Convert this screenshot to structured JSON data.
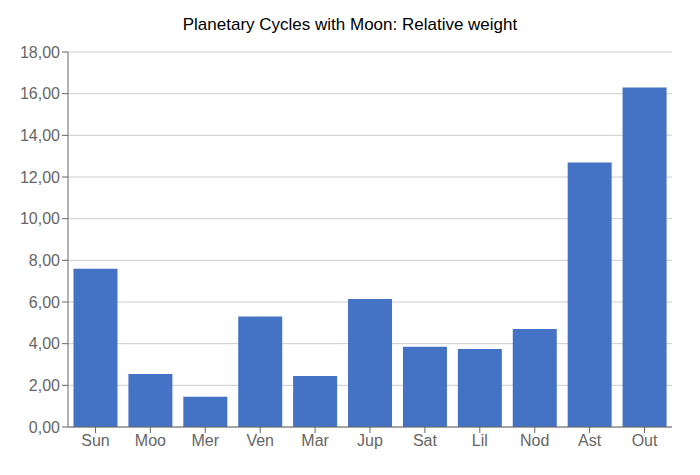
{
  "chart_data": {
    "type": "bar",
    "title": "Planetary Cycles with Moon: Relative weight",
    "categories": [
      "Sun",
      "Moo",
      "Mer",
      "Ven",
      "Mar",
      "Jup",
      "Sat",
      "Lil",
      "Nod",
      "Ast",
      "Out"
    ],
    "values": [
      7.6,
      2.55,
      1.45,
      5.3,
      2.45,
      6.15,
      3.85,
      3.75,
      4.7,
      12.7,
      16.3
    ],
    "color": "#4472C4",
    "ylim": [
      0,
      18
    ],
    "yticks": [
      {
        "value": 0,
        "label": "0,00"
      },
      {
        "value": 2,
        "label": "2,00"
      },
      {
        "value": 4,
        "label": "4,00"
      },
      {
        "value": 6,
        "label": "6,00"
      },
      {
        "value": 8,
        "label": "8,00"
      },
      {
        "value": 10,
        "label": "10,00"
      },
      {
        "value": 12,
        "label": "12,00"
      },
      {
        "value": 14,
        "label": "14,00"
      },
      {
        "value": 16,
        "label": "16,00"
      },
      {
        "value": 18,
        "label": "18,00"
      }
    ],
    "grid": true
  }
}
